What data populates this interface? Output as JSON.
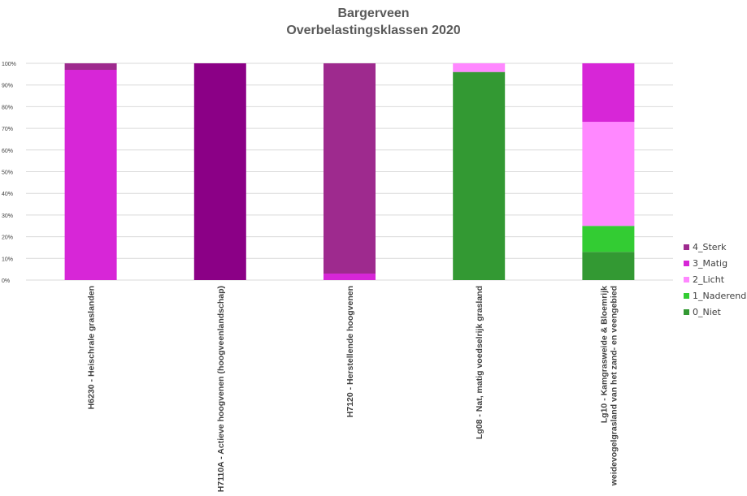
{
  "chart_data": {
    "type": "bar",
    "stacked": true,
    "percent": true,
    "title": "Bargerveen",
    "subtitle": "Overbelastingsklassen 2020",
    "ylim": [
      0,
      100
    ],
    "y_ticks": [
      "0%",
      "10%",
      "20%",
      "30%",
      "40%",
      "50%",
      "60%",
      "70%",
      "80%",
      "90%",
      "100%"
    ],
    "grid": true,
    "legend_position": "right",
    "categories": [
      [
        "H6230 - Heischrale graslanden"
      ],
      [
        "H7110A - Actieve hoogvenen (hoogveenlandschap)"
      ],
      [
        "H7120 - Herstellende hoogvenen"
      ],
      [
        "Lg08 - Nat, matig voedselrijk grasland"
      ],
      [
        "Lg10 - Kamgrasweide & Bloemrijk",
        "weidevogelgrasland van het zand- en veengebied"
      ]
    ],
    "series": [
      {
        "name": "0_Niet",
        "color": "#339933",
        "values": [
          0,
          0,
          0,
          96,
          13
        ]
      },
      {
        "name": "1_Naderend",
        "color": "#33cc33",
        "values": [
          0,
          0,
          0,
          0,
          12
        ]
      },
      {
        "name": "2_Licht",
        "color": "#ff88ff",
        "values": [
          0,
          0,
          0,
          4,
          48
        ]
      },
      {
        "name": "3_Matig",
        "color": "#d726d7",
        "values": [
          97,
          0,
          3,
          0,
          27
        ]
      },
      {
        "name": "4_Sterk",
        "color": "#9e2a8e",
        "values": [
          3,
          0,
          97,
          0,
          0
        ]
      },
      {
        "name": "4_Sterk",
        "color": "#8b0086",
        "values": [
          0,
          100,
          0,
          0,
          0
        ]
      }
    ],
    "legend": [
      {
        "name": "4_Sterk",
        "color": "#9e2a8e"
      },
      {
        "name": "3_Matig",
        "color": "#d726d7"
      },
      {
        "name": "2_Licht",
        "color": "#ff88ff"
      },
      {
        "name": "1_Naderend",
        "color": "#33cc33"
      },
      {
        "name": "0_Niet",
        "color": "#339933"
      }
    ]
  }
}
